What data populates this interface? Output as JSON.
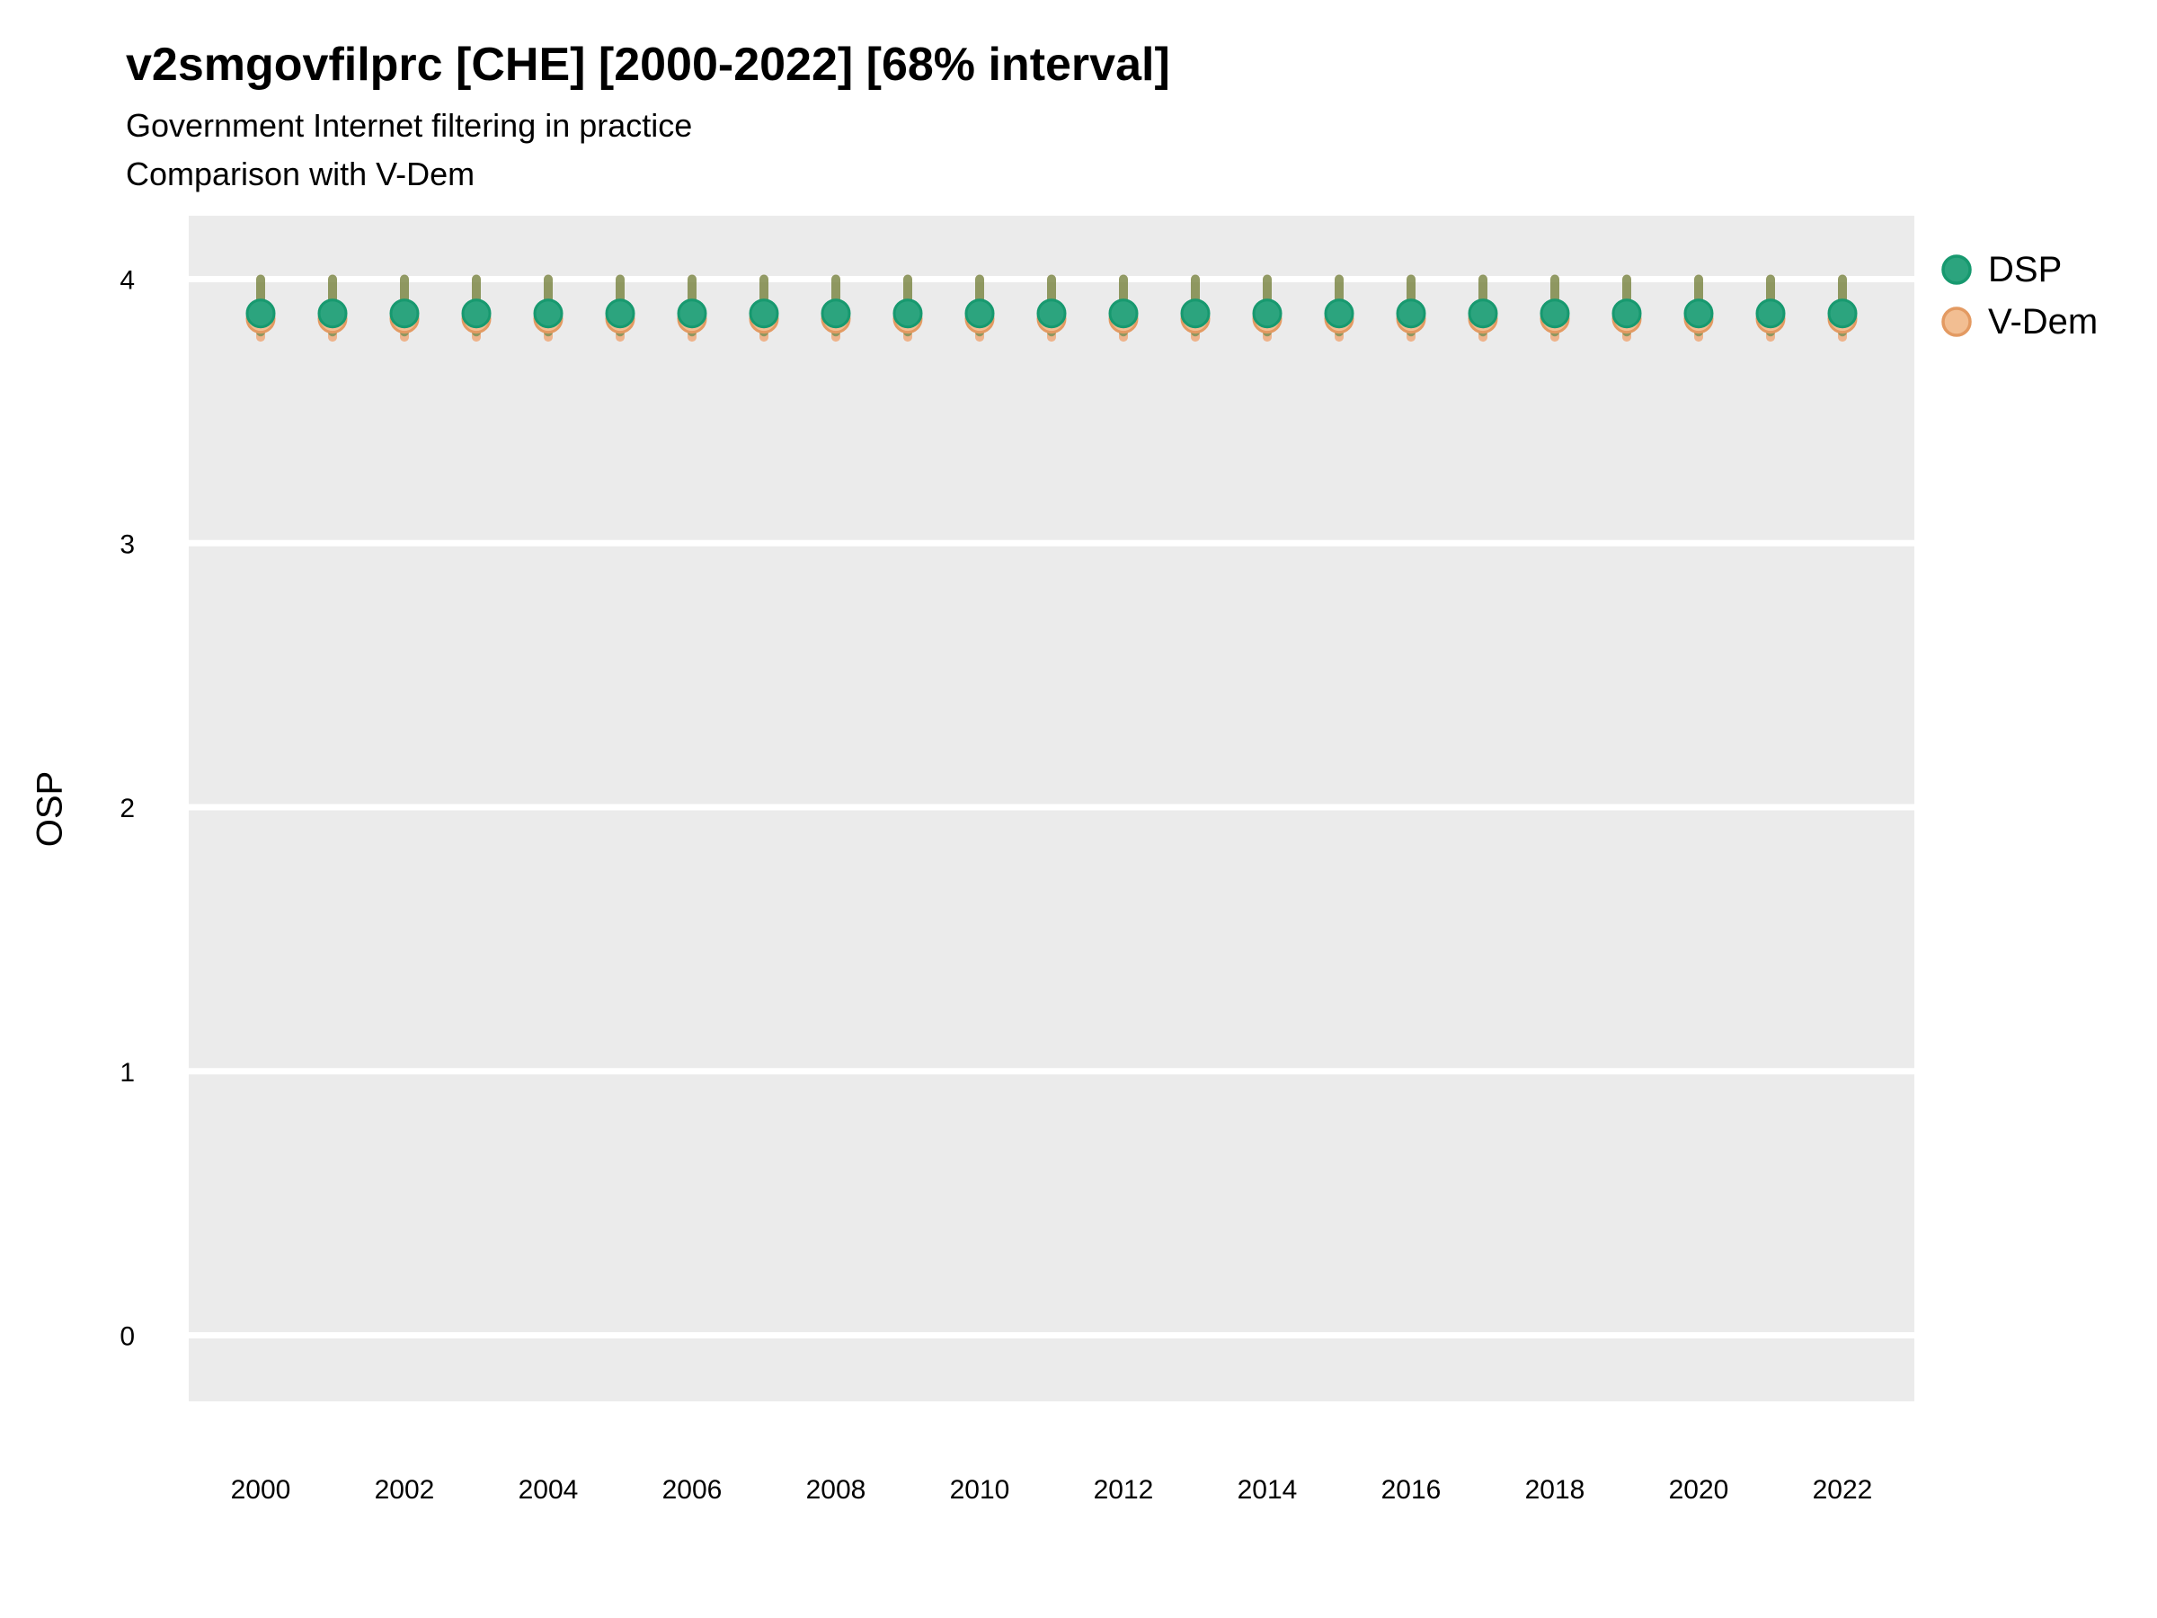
{
  "header": {
    "title": "v2smgovfilprc [CHE] [2000-2022] [68% interval]",
    "subtitle": "Government Internet filtering in practice",
    "subtitle2": "Comparison with V-Dem"
  },
  "legend": {
    "position": "right-top",
    "entries": [
      {
        "label": "DSP",
        "fill": "#2CA47E",
        "stroke": "#17996F"
      },
      {
        "label": "V-Dem",
        "fill": "#F2BE92",
        "stroke": "#E39A62"
      }
    ]
  },
  "chart_data": {
    "type": "scatter",
    "title": "v2smgovfilprc [CHE] [2000-2022] [68% interval]",
    "subtitle": "Government Internet filtering in practice",
    "subtitle2": "Comparison with V-Dem",
    "xlabel": "",
    "ylabel": "OSP",
    "interval": "68%",
    "grid": "horizontal-major-only",
    "panel_bg": "#EBEBEB",
    "grid_color": "#FFFFFF",
    "xlim": [
      1999,
      2023
    ],
    "ylim": [
      -0.25,
      4.24
    ],
    "yticks": [
      0,
      1,
      2,
      3,
      4
    ],
    "xticks": [
      2000,
      2002,
      2004,
      2006,
      2008,
      2010,
      2012,
      2014,
      2016,
      2018,
      2020,
      2022
    ],
    "x": [
      2000,
      2001,
      2002,
      2003,
      2004,
      2005,
      2006,
      2007,
      2008,
      2009,
      2010,
      2011,
      2012,
      2013,
      2014,
      2015,
      2016,
      2017,
      2018,
      2019,
      2020,
      2021,
      2022
    ],
    "series": [
      {
        "name": "DSP",
        "marker_fill": "#2CA47E",
        "marker_stroke": "#17996F",
        "bar_color": "rgba(64,128,62,0.55)",
        "est": [
          3.87,
          3.87,
          3.87,
          3.87,
          3.87,
          3.87,
          3.87,
          3.87,
          3.87,
          3.87,
          3.87,
          3.87,
          3.87,
          3.87,
          3.87,
          3.87,
          3.87,
          3.87,
          3.87,
          3.87,
          3.87,
          3.87,
          3.87
        ],
        "lo": [
          3.8,
          3.8,
          3.8,
          3.8,
          3.8,
          3.8,
          3.8,
          3.8,
          3.8,
          3.8,
          3.8,
          3.8,
          3.8,
          3.8,
          3.8,
          3.8,
          3.8,
          3.8,
          3.8,
          3.8,
          3.8,
          3.8,
          3.8
        ],
        "hi": [
          4.0,
          4.0,
          4.0,
          4.0,
          4.0,
          4.0,
          4.0,
          4.0,
          4.0,
          4.0,
          4.0,
          4.0,
          4.0,
          4.0,
          4.0,
          4.0,
          4.0,
          4.0,
          4.0,
          4.0,
          4.0,
          4.0,
          4.0
        ]
      },
      {
        "name": "V-Dem",
        "marker_fill": "#F2BE92",
        "marker_stroke": "#E39A62",
        "bar_color": "rgba(240,133,61,0.55)",
        "est": [
          3.85,
          3.85,
          3.85,
          3.85,
          3.85,
          3.85,
          3.85,
          3.85,
          3.85,
          3.85,
          3.85,
          3.85,
          3.85,
          3.85,
          3.85,
          3.85,
          3.85,
          3.85,
          3.85,
          3.85,
          3.85,
          3.85,
          3.85
        ],
        "lo": [
          3.78,
          3.78,
          3.78,
          3.78,
          3.78,
          3.78,
          3.78,
          3.78,
          3.78,
          3.78,
          3.78,
          3.78,
          3.78,
          3.78,
          3.78,
          3.78,
          3.78,
          3.78,
          3.78,
          3.78,
          3.78,
          3.78,
          3.78
        ],
        "hi": [
          4.0,
          4.0,
          4.0,
          4.0,
          4.0,
          4.0,
          4.0,
          4.0,
          4.0,
          4.0,
          4.0,
          4.0,
          4.0,
          4.0,
          4.0,
          4.0,
          4.0,
          4.0,
          4.0,
          4.0,
          4.0,
          4.0,
          4.0
        ]
      }
    ]
  }
}
